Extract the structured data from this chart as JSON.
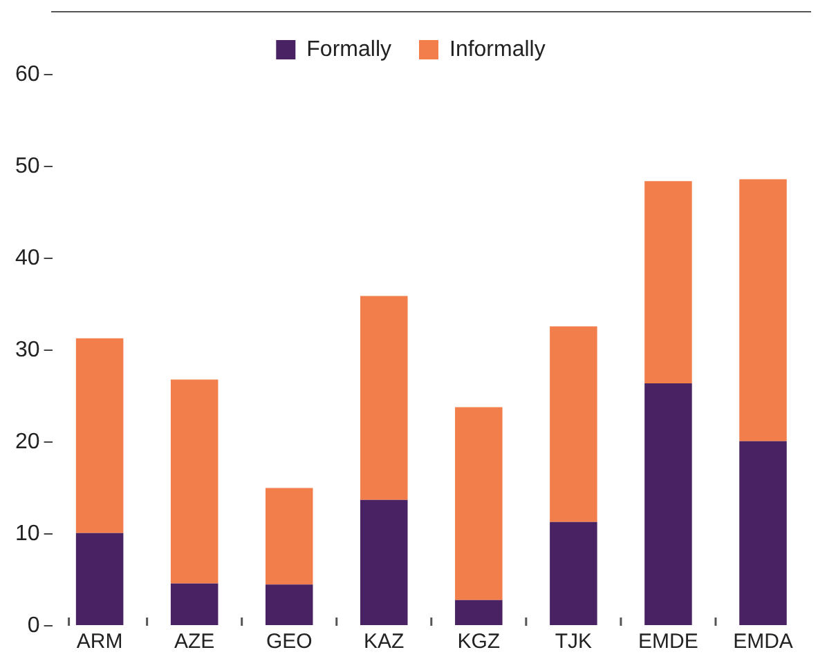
{
  "chart_data": {
    "type": "bar",
    "stacked": true,
    "categories": [
      "ARM",
      "AZE",
      "GEO",
      "KAZ",
      "KGZ",
      "TJK",
      "EMDE",
      "EMDA"
    ],
    "series": [
      {
        "name": "Formally",
        "color": "#482263",
        "values": [
          10.1,
          4.6,
          4.5,
          13.7,
          2.8,
          11.3,
          26.4,
          20.1
        ]
      },
      {
        "name": "Informally",
        "color": "#f27f4b",
        "values": [
          21.2,
          22.2,
          10.5,
          22.2,
          21.0,
          21.3,
          22.0,
          28.5
        ]
      }
    ],
    "ylim": [
      0,
      60
    ],
    "yticks": [
      0,
      10,
      20,
      30,
      40,
      50,
      60
    ],
    "grid": false,
    "legend": "top"
  }
}
